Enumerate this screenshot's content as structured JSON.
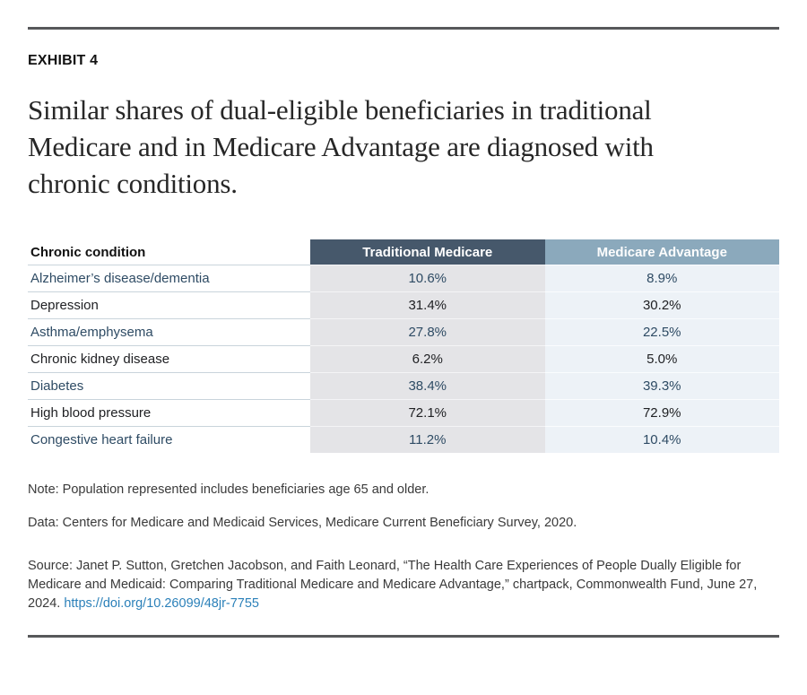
{
  "header": {
    "exhibit_label": "EXHIBIT 4",
    "title": "Similar shares of dual-eligible beneficiaries in traditional Medicare and in Medicare Advantage are diagnosed with chronic conditions."
  },
  "table": {
    "columns": [
      "Chronic condition",
      "Traditional Medicare",
      "Medicare Advantage"
    ],
    "rows": [
      {
        "condition": "Alzheimer’s disease/dementia",
        "traditional_medicare": "10.6%",
        "medicare_advantage": "8.9%"
      },
      {
        "condition": "Depression",
        "traditional_medicare": "31.4%",
        "medicare_advantage": "30.2%"
      },
      {
        "condition": "Asthma/emphysema",
        "traditional_medicare": "27.8%",
        "medicare_advantage": "22.5%"
      },
      {
        "condition": "Chronic kidney disease",
        "traditional_medicare": "6.2%",
        "medicare_advantage": "5.0%"
      },
      {
        "condition": "Diabetes",
        "traditional_medicare": "38.4%",
        "medicare_advantage": "39.3%"
      },
      {
        "condition": "High blood pressure",
        "traditional_medicare": "72.1%",
        "medicare_advantage": "72.9%"
      },
      {
        "condition": "Congestive heart failure",
        "traditional_medicare": "11.2%",
        "medicare_advantage": "10.4%"
      }
    ]
  },
  "footnotes": {
    "note": "Note: Population represented includes beneficiaries age 65 and older.",
    "data": "Data: Centers for Medicare and Medicaid Services, Medicare Current Beneficiary Survey, 2020.",
    "source": "Source: Janet P. Sutton, Gretchen Jacobson, and Faith Leonard, “The Health Care Experiences of People Dually Eligible for Medicare and Medicaid: Comparing Traditional Medicare and Medicare Advantage,” chartpack, Commonwealth Fund, June 27, 2024. ",
    "doi_link": "https://doi.org/10.26099/48jr-7755"
  },
  "colors": {
    "traditional_medicare_header_bg": "#46586b",
    "medicare_advantage_header_bg": "#8ba9bc",
    "traditional_medicare_cell_bg": "#e4e4e7",
    "medicare_advantage_cell_bg": "#edf2f7",
    "accent_row_text": "#2e4b64",
    "dark_row_text": "#202124",
    "link": "#2b80b9",
    "divider": "#57585a"
  },
  "chart_data": {
    "type": "table",
    "title": "Similar shares of dual-eligible beneficiaries in traditional Medicare and in Medicare Advantage are diagnosed with chronic conditions.",
    "categories": [
      "Alzheimer’s disease/dementia",
      "Depression",
      "Asthma/emphysema",
      "Chronic kidney disease",
      "Diabetes",
      "High blood pressure",
      "Congestive heart failure"
    ],
    "series": [
      {
        "name": "Traditional Medicare",
        "values": [
          10.6,
          31.4,
          27.8,
          6.2,
          38.4,
          72.1,
          11.2
        ]
      },
      {
        "name": "Medicare Advantage",
        "values": [
          8.9,
          30.2,
          22.5,
          5.0,
          39.3,
          72.9,
          10.4
        ]
      }
    ],
    "units": "percent"
  }
}
